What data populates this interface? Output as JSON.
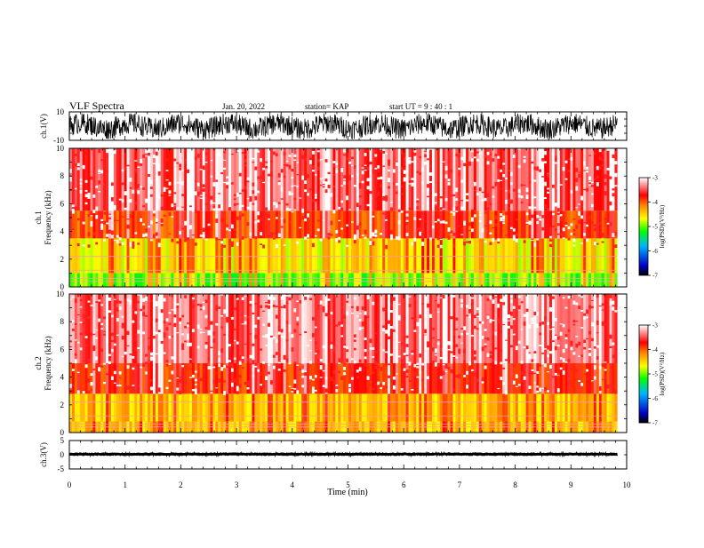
{
  "header": {
    "title": "VLF Spectra",
    "date": "Jan. 20, 2022",
    "station": "station= KAP",
    "start": "start  UT =   9 : 40 : 1"
  },
  "chart_data": [
    {
      "type": "line",
      "id": "ch1-waveform",
      "ylabel": "ch.1(V)",
      "ylim": [
        -10,
        10
      ],
      "yticks": [
        "10",
        "-10"
      ],
      "xlim": [
        0,
        10
      ],
      "data_end_min": 9.83,
      "color": "#000000",
      "description_level": "dense noise oscillating roughly between -9 and 9 V"
    },
    {
      "type": "heatmap",
      "id": "ch1-spectrogram",
      "ylabel": "ch.1\nFrequency (kHz)",
      "ylim": [
        0,
        10
      ],
      "yticks": [
        "0",
        "2",
        "4",
        "6",
        "8",
        "10"
      ],
      "xlim": [
        0,
        10
      ],
      "data_end_min": 9.83,
      "colorbar": {
        "label": "log(PSD)(V²/Hz)",
        "min": -7,
        "max": -3,
        "ticks": [
          "-3",
          "-4",
          "-5",
          "-6",
          "-7"
        ]
      },
      "bands": [
        {
          "from_khz": 0,
          "to_khz": 1.0,
          "level": -5.0
        },
        {
          "from_khz": 1.0,
          "to_khz": 3.5,
          "level": -4.6
        },
        {
          "from_khz": 3.5,
          "to_khz": 5.5,
          "level": -3.9
        },
        {
          "from_khz": 5.5,
          "to_khz": 10,
          "level": -3.5
        }
      ]
    },
    {
      "type": "heatmap",
      "id": "ch2-spectrogram",
      "ylabel": "ch.2\nFrequency (kHz)",
      "ylim": [
        0,
        10
      ],
      "yticks": [
        "0",
        "2",
        "4",
        "6",
        "8",
        "10"
      ],
      "xlim": [
        0,
        10
      ],
      "data_end_min": 9.83,
      "colorbar": {
        "label": "log(PSD)(V²/Hz)",
        "min": -7,
        "max": -3,
        "ticks": [
          "-3",
          "-4",
          "-5",
          "-6",
          "-7"
        ]
      },
      "bands": [
        {
          "from_khz": 0,
          "to_khz": 0.8,
          "level": -4.4
        },
        {
          "from_khz": 0.8,
          "to_khz": 2.8,
          "level": -4.4
        },
        {
          "from_khz": 2.8,
          "to_khz": 5.0,
          "level": -3.8
        },
        {
          "from_khz": 5.0,
          "to_khz": 10,
          "level": -3.4
        }
      ]
    },
    {
      "type": "line",
      "id": "ch3-waveform",
      "ylabel": "ch.3(V)",
      "ylim": [
        -5,
        5
      ],
      "yticks": [
        "5",
        "0",
        "-5"
      ],
      "xlim": [
        0,
        10
      ],
      "data_end_min": 9.83,
      "level_v": 0.2,
      "amplitude_v": 0.6,
      "color": "#000000"
    }
  ],
  "xaxis": {
    "label": "Time (min)",
    "ticks": [
      "0",
      "1",
      "2",
      "3",
      "4",
      "5",
      "6",
      "7",
      "8",
      "9",
      "10"
    ]
  },
  "colorbar_label": "log(PSD)(V²/Hz)"
}
